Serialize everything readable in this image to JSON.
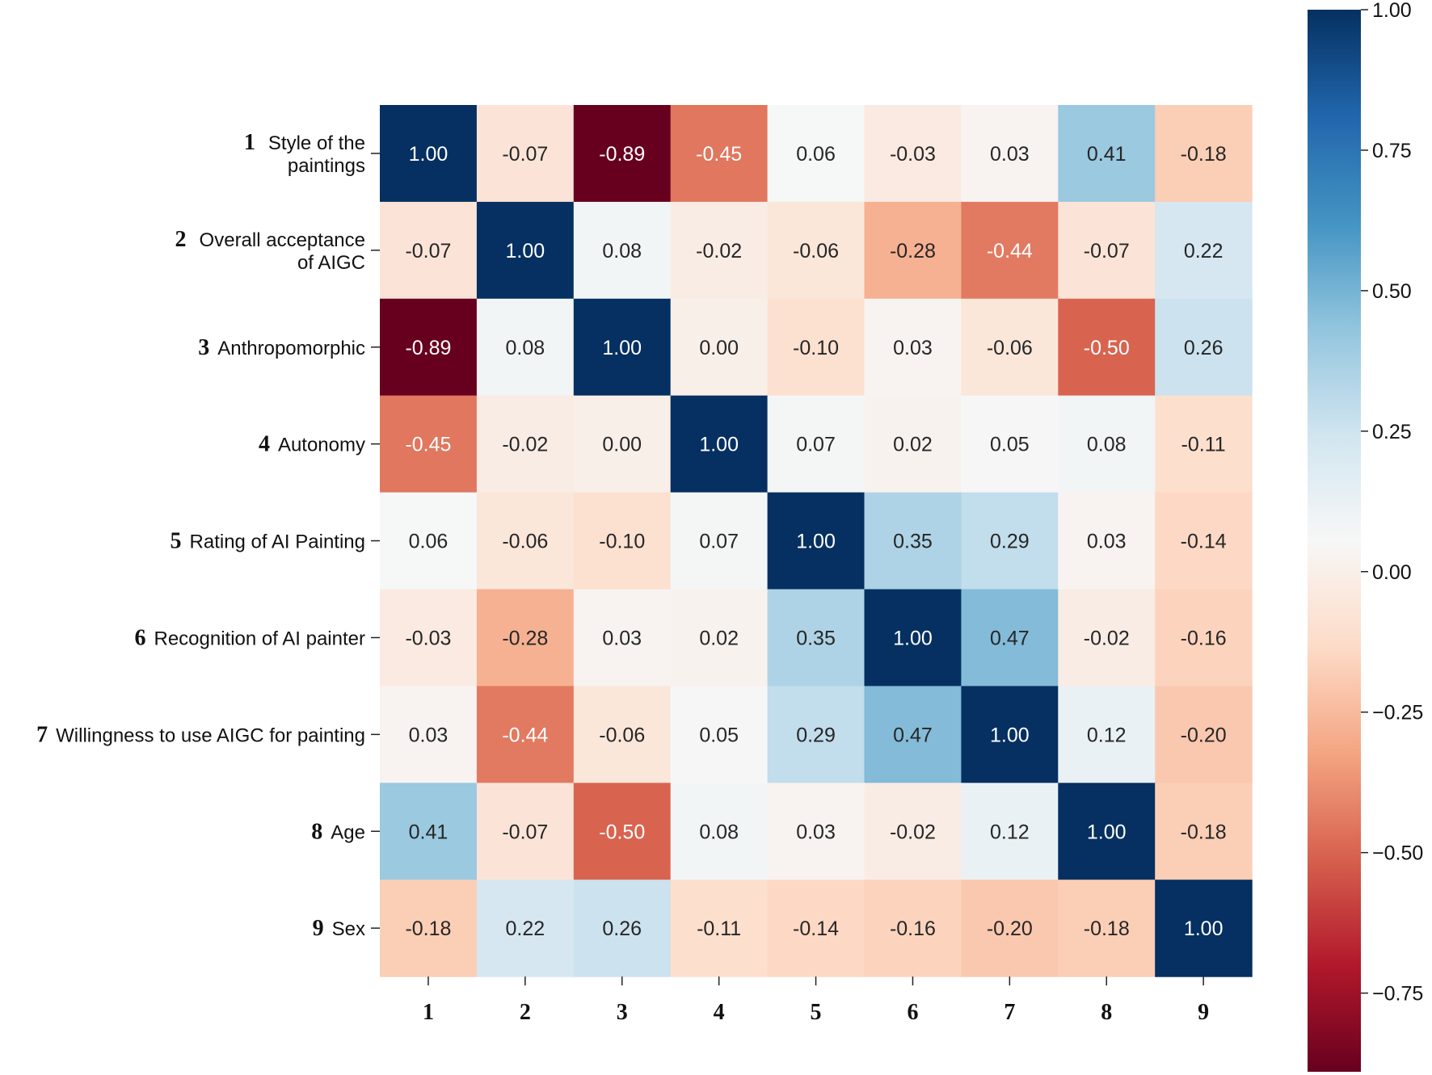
{
  "chart_data": {
    "type": "heatmap",
    "title": "",
    "colormap": "RdBu",
    "vmin": -0.89,
    "vmax": 1.0,
    "row_labels": [
      {
        "num": "1",
        "lines": [
          "Style of the",
          "paintings"
        ]
      },
      {
        "num": "2",
        "lines": [
          "Overall acceptance",
          "of AIGC"
        ]
      },
      {
        "num": "3",
        "lines": [
          "Anthropomorphic"
        ]
      },
      {
        "num": "4",
        "lines": [
          "Autonomy"
        ]
      },
      {
        "num": "5",
        "lines": [
          "Rating of AI Painting"
        ]
      },
      {
        "num": "6",
        "lines": [
          "Recognition of AI painter"
        ]
      },
      {
        "num": "7",
        "lines": [
          "Willingness to use AIGC for painting"
        ]
      },
      {
        "num": "8",
        "lines": [
          "Age"
        ]
      },
      {
        "num": "9",
        "lines": [
          "Sex"
        ]
      }
    ],
    "col_labels": [
      "1",
      "2",
      "3",
      "4",
      "5",
      "6",
      "7",
      "8",
      "9"
    ],
    "values": [
      [
        1.0,
        -0.07,
        -0.89,
        -0.45,
        0.06,
        -0.03,
        0.03,
        0.41,
        -0.18
      ],
      [
        -0.07,
        1.0,
        0.08,
        -0.02,
        -0.06,
        -0.28,
        -0.44,
        -0.07,
        0.22
      ],
      [
        -0.89,
        0.08,
        1.0,
        0.0,
        -0.1,
        0.03,
        -0.06,
        -0.5,
        0.26
      ],
      [
        -0.45,
        -0.02,
        0.0,
        1.0,
        0.07,
        0.02,
        0.05,
        0.08,
        -0.11
      ],
      [
        0.06,
        -0.06,
        -0.1,
        0.07,
        1.0,
        0.35,
        0.29,
        0.03,
        -0.14
      ],
      [
        -0.03,
        -0.28,
        0.03,
        0.02,
        0.35,
        1.0,
        0.47,
        -0.02,
        -0.16
      ],
      [
        0.03,
        -0.44,
        -0.06,
        0.05,
        0.29,
        0.47,
        1.0,
        0.12,
        -0.2
      ],
      [
        0.41,
        -0.07,
        -0.5,
        0.08,
        0.03,
        -0.02,
        0.12,
        1.0,
        -0.18
      ],
      [
        -0.18,
        0.22,
        0.26,
        -0.11,
        -0.14,
        -0.16,
        -0.2,
        -0.18,
        1.0
      ]
    ],
    "colorbar": {
      "ticks": [
        1.0,
        0.75,
        0.5,
        0.25,
        0.0,
        -0.25,
        -0.5,
        -0.75
      ],
      "tick_labels": [
        "1.00",
        "0.75",
        "0.50",
        "0.25",
        "0.00",
        "−0.25",
        "−0.50",
        "−0.75"
      ]
    }
  }
}
